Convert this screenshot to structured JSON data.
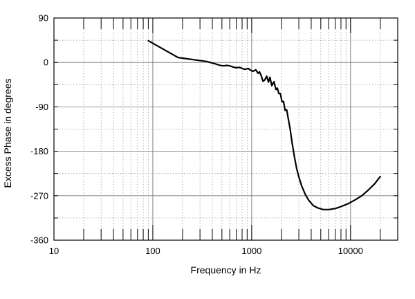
{
  "chart_data": {
    "type": "line",
    "title": "",
    "xlabel": "Frequency in Hz",
    "ylabel": "Excess Phase in degrees",
    "x_scale": "log",
    "xlim": [
      10,
      30000
    ],
    "ylim": [
      -360,
      90
    ],
    "x_ticks": [
      10,
      100,
      1000,
      10000
    ],
    "x_tick_labels": [
      "10",
      "100",
      "1000",
      "10000"
    ],
    "y_ticks": [
      90,
      0,
      -90,
      -180,
      -270,
      -360
    ],
    "y_tick_labels": [
      "90",
      "0",
      "-90",
      "-180",
      "-270",
      "-360"
    ],
    "grid": true,
    "legend": "none",
    "colors": {
      "line": "#000000",
      "grid": "#888888",
      "frame": "#000000"
    },
    "series": [
      {
        "x": [
          90,
          180,
          350,
          430,
          480,
          520,
          560,
          600,
          640,
          700,
          740,
          780,
          820,
          860,
          920,
          980,
          1030,
          1100,
          1160,
          1200,
          1250,
          1300,
          1350,
          1420,
          1480,
          1530,
          1600,
          1680,
          1760,
          1820,
          1880,
          1950,
          2030,
          2100,
          2180,
          2260,
          2350,
          2450,
          2550,
          2700,
          2850,
          3000,
          3200,
          3500,
          3800,
          4200,
          4700,
          5300,
          6000,
          7000,
          8000,
          9500,
          11000,
          13000,
          15000,
          17500,
          20000
        ],
        "values": [
          44,
          10,
          2,
          -3,
          -6,
          -7,
          -6,
          -7,
          -9,
          -11,
          -10,
          -11,
          -13,
          -14,
          -12,
          -16,
          -18,
          -15,
          -22,
          -19,
          -27,
          -38,
          -36,
          -28,
          -40,
          -30,
          -47,
          -39,
          -55,
          -52,
          -63,
          -63,
          -80,
          -79,
          -97,
          -96,
          -115,
          -135,
          -160,
          -190,
          -215,
          -232,
          -250,
          -268,
          -280,
          -290,
          -295,
          -298,
          -298,
          -296,
          -292,
          -286,
          -279,
          -270,
          -259,
          -246,
          -231
        ]
      }
    ]
  }
}
